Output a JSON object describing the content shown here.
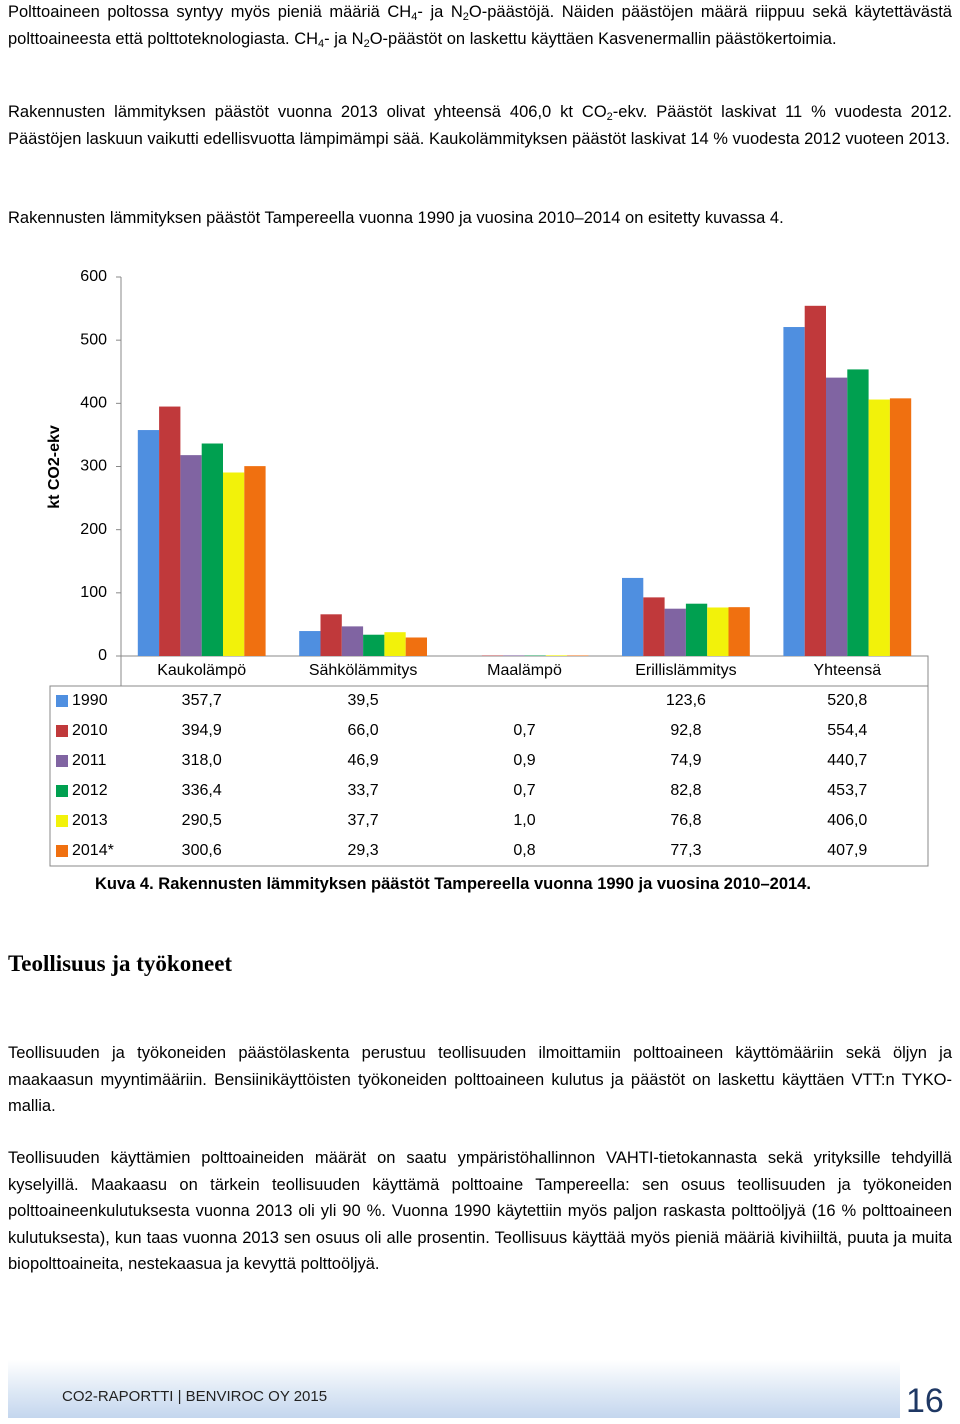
{
  "paragraphs_top": [
    [
      "Polttoaineen poltossa syntyy myös pieniä määriä CH",
      "4",
      "- ja N",
      "2",
      "O-päästöjä. Näiden päästöjen määrä riippuu sekä käytettävästä polttoaineesta että polttoteknologiasta. CH",
      "4",
      "- ja N",
      "2",
      "O-päästöt on laskettu käyttäen Kasvenermallin päästökertoimia."
    ],
    [
      "Rakennusten lämmityksen päästöt vuonna 2013 olivat yhteensä 406,0 kt CO",
      "2",
      "-ekv. Päästöt laskivat 11 % vuodesta 2012. Päästöjen laskuun vaikutti edellisvuotta lämpimämpi sää. Kaukolämmityksen päästöt laskivat 14 % vuodesta 2012 vuoteen 2013."
    ],
    [
      "Rakennusten lämmityksen päästöt Tampereella vuonna 1990 ja vuosina 2010–2014 on esitetty kuvassa 4."
    ]
  ],
  "chart_data": {
    "type": "bar",
    "ylabel": "kt CO2-ekv",
    "categories": [
      "Kaukolämpö",
      "Sähkölämmitys",
      "Maalämpö",
      "Erillislämmitys",
      "Yhteensä"
    ],
    "series": [
      {
        "name": "1990",
        "color": "#4f8fe0",
        "values": [
          357.7,
          39.5,
          null,
          123.6,
          520.8
        ],
        "value_labels": [
          "357,7",
          "39,5",
          null,
          "123,6",
          "520,8"
        ]
      },
      {
        "name": "2010",
        "color": "#c0393b",
        "values": [
          394.9,
          66.0,
          0.7,
          92.8,
          554.4
        ],
        "value_labels": [
          "394,9",
          "66,0",
          "0,7",
          "92,8",
          "554,4"
        ]
      },
      {
        "name": "2011",
        "color": "#8064a2",
        "values": [
          318.0,
          46.9,
          0.9,
          74.9,
          440.7
        ],
        "value_labels": [
          "318,0",
          "46,9",
          "0,9",
          "74,9",
          "440,7"
        ]
      },
      {
        "name": "2012",
        "color": "#00a050",
        "values": [
          336.4,
          33.7,
          0.7,
          82.8,
          453.7
        ],
        "value_labels": [
          "336,4",
          "33,7",
          "0,7",
          "82,8",
          "453,7"
        ]
      },
      {
        "name": "2013",
        "color": "#f2f20a",
        "values": [
          290.5,
          37.7,
          1.0,
          76.8,
          406.0
        ],
        "value_labels": [
          "290,5",
          "37,7",
          "1,0",
          "76,8",
          "406,0"
        ]
      },
      {
        "name": "2014*",
        "color": "#f07010",
        "values": [
          300.6,
          29.3,
          0.8,
          77.3,
          407.9
        ],
        "value_labels": [
          "300,6",
          "29,3",
          "0,8",
          "77,3",
          "407,9"
        ]
      }
    ],
    "ylim": [
      0,
      600
    ],
    "yticks": [
      0,
      100,
      200,
      300,
      400,
      500,
      600
    ],
    "grid": false
  },
  "caption": "Kuva 4. Rakennusten lämmityksen päästöt Tampereella vuonna 1990 ja vuosina 2010–2014.",
  "heading": "Teollisuus ja työkoneet",
  "paragraphs_bottom": [
    "Teollisuuden ja työkoneiden päästölaskenta perustuu teollisuuden ilmoittamiin polttoaineen käyttömääriin sekä öljyn ja maakaasun myyntimääriin. Bensiinikäyttöisten työkoneiden polttoaineen kulutus ja päästöt on laskettu käyttäen VTT:n TYKO-mallia.",
    "Teollisuuden käyttämien polttoaineiden määrät on saatu ympäristöhallinnon VAHTI-tietokannasta sekä yrityksille tehdyillä kyselyillä. Maakaasu on tärkein teollisuuden käyttämä polttoaine Tampereella: sen osuus teollisuuden ja työkoneiden polttoaineenkulutuksesta vuonna 2013 oli yli 90 %. Vuonna 1990 käytettiin myös paljon raskasta polttoöljyä (16 % polttoaineen kulutuksesta), kun taas vuonna 2013 sen osuus oli alle prosentin. Teollisuus käyttää myös pieniä määriä kivihiiltä, puuta ja muita biopolttoaineita, nestekaasua ja kevyttä polttoöljyä."
  ],
  "footer": {
    "report": "CO2-RAPORTTI | BENVIROC OY 2015",
    "page": "16"
  }
}
